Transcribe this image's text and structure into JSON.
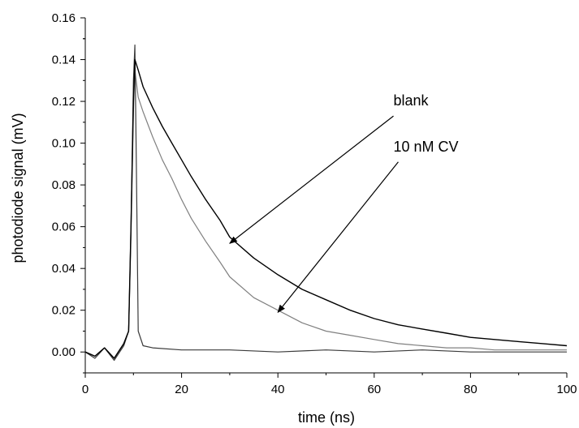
{
  "chart_data": {
    "type": "line",
    "title": "",
    "xlabel": "time (ns)",
    "ylabel": "photodiode signal (mV)",
    "xlim": [
      0,
      100
    ],
    "ylim": [
      -0.01,
      0.16
    ],
    "x_ticks": [
      0,
      20,
      40,
      60,
      80,
      100
    ],
    "x_tick_labels": [
      "0",
      "20",
      "40",
      "60",
      "80",
      "100"
    ],
    "y_ticks": [
      0.0,
      0.02,
      0.04,
      0.06,
      0.08,
      0.1,
      0.12,
      0.14,
      0.16
    ],
    "y_tick_labels": [
      "0.00",
      "0.02",
      "0.04",
      "0.06",
      "0.08",
      "0.10",
      "0.12",
      "0.14",
      "0.16"
    ],
    "grid": false,
    "legend": "none",
    "series": [
      {
        "name": "blank",
        "color": "#000000",
        "x": [
          0,
          2,
          4,
          6,
          8,
          9,
          9.5,
          10,
          10.3,
          11,
          12,
          14,
          16,
          18,
          20,
          22,
          25,
          28,
          30,
          35,
          40,
          45,
          50,
          55,
          60,
          65,
          70,
          75,
          80,
          85,
          90,
          95,
          100
        ],
        "y": [
          0.0,
          -0.002,
          0.002,
          -0.003,
          0.004,
          0.01,
          0.06,
          0.12,
          0.14,
          0.135,
          0.127,
          0.117,
          0.108,
          0.1,
          0.092,
          0.084,
          0.073,
          0.063,
          0.055,
          0.045,
          0.037,
          0.03,
          0.025,
          0.02,
          0.016,
          0.013,
          0.011,
          0.009,
          0.007,
          0.006,
          0.005,
          0.004,
          0.003
        ]
      },
      {
        "name": "10 nM CV",
        "color": "#808080",
        "x": [
          0,
          2,
          4,
          6,
          8,
          9,
          9.5,
          10,
          10.3,
          11,
          12,
          14,
          16,
          18,
          20,
          22,
          25,
          28,
          30,
          35,
          40,
          45,
          50,
          55,
          60,
          65,
          70,
          75,
          80,
          85,
          90,
          95,
          100
        ],
        "y": [
          0.0,
          -0.002,
          0.002,
          -0.003,
          0.004,
          0.01,
          0.055,
          0.115,
          0.135,
          0.122,
          0.115,
          0.103,
          0.092,
          0.083,
          0.073,
          0.064,
          0.053,
          0.043,
          0.036,
          0.026,
          0.02,
          0.014,
          0.01,
          0.008,
          0.006,
          0.004,
          0.003,
          0.002,
          0.002,
          0.001,
          0.001,
          0.001,
          0.001
        ]
      },
      {
        "color": "#3a3a3a",
        "x": [
          0,
          2,
          4,
          6,
          8,
          9,
          9.5,
          10,
          10.3,
          10.6,
          11,
          12,
          14,
          20,
          30,
          40,
          50,
          60,
          70,
          80,
          90,
          100
        ],
        "y": [
          0.0,
          -0.003,
          0.002,
          -0.004,
          0.003,
          0.01,
          0.06,
          0.13,
          0.147,
          0.09,
          0.01,
          0.003,
          0.002,
          0.001,
          0.001,
          0.0,
          0.001,
          0.0,
          0.001,
          0.0,
          0.0,
          0.0
        ]
      }
    ],
    "annotations": [
      {
        "text": "blank",
        "text_at": [
          64,
          0.118
        ],
        "arrow_from": [
          64,
          0.113
        ],
        "arrow_to": [
          30,
          0.052
        ]
      },
      {
        "text": "10 nM CV",
        "text_at": [
          64,
          0.096
        ],
        "arrow_from": [
          65,
          0.091
        ],
        "arrow_to": [
          40,
          0.019
        ]
      }
    ]
  }
}
